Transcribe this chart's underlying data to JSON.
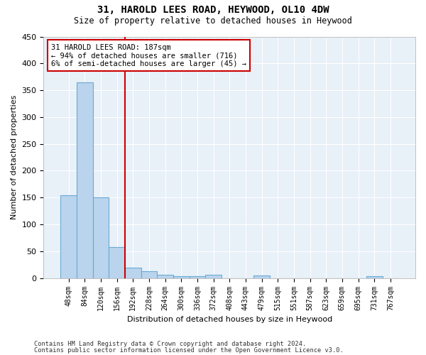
{
  "title": "31, HAROLD LEES ROAD, HEYWOOD, OL10 4DW",
  "subtitle": "Size of property relative to detached houses in Heywood",
  "xlabel": "Distribution of detached houses by size in Heywood",
  "ylabel": "Number of detached properties",
  "bar_color": "#bad4ed",
  "bar_edge_color": "#6aaad4",
  "background_color": "#e8f0f8",
  "categories": [
    "48sqm",
    "84sqm",
    "120sqm",
    "156sqm",
    "192sqm",
    "228sqm",
    "264sqm",
    "300sqm",
    "336sqm",
    "372sqm",
    "408sqm",
    "443sqm",
    "479sqm",
    "515sqm",
    "551sqm",
    "587sqm",
    "623sqm",
    "659sqm",
    "695sqm",
    "731sqm",
    "767sqm"
  ],
  "values": [
    155,
    365,
    151,
    58,
    19,
    13,
    6,
    4,
    4,
    6,
    0,
    0,
    5,
    0,
    0,
    0,
    0,
    0,
    0,
    4,
    0
  ],
  "ylim": [
    0,
    450
  ],
  "yticks": [
    0,
    50,
    100,
    150,
    200,
    250,
    300,
    350,
    400,
    450
  ],
  "property_line_bin": 4,
  "annotation_text": "31 HAROLD LEES ROAD: 187sqm\n← 94% of detached houses are smaller (716)\n6% of semi-detached houses are larger (45) →",
  "annotation_box_color": "#ffffff",
  "annotation_box_edge": "#cc0000",
  "property_line_color": "#cc0000",
  "footer_line1": "Contains HM Land Registry data © Crown copyright and database right 2024.",
  "footer_line2": "Contains public sector information licensed under the Open Government Licence v3.0.",
  "grid_color": "#ffffff",
  "tick_label_fontsize": 7,
  "ylabel_fontsize": 8,
  "xlabel_fontsize": 8,
  "title_fontsize": 10,
  "subtitle_fontsize": 8.5
}
